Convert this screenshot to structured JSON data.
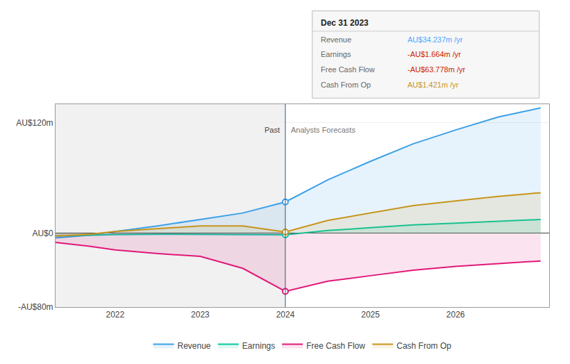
{
  "chart_data": {
    "type": "line",
    "x": [
      2021.3,
      2021.7,
      2022.0,
      2022.5,
      2023.0,
      2023.5,
      2024.0,
      2024.5,
      2025.0,
      2025.5,
      2026.0,
      2026.5,
      2027.0
    ],
    "series": [
      {
        "name": "Revenue",
        "color": "#3ba0e8",
        "values": [
          -5,
          -2,
          2,
          8,
          15,
          22,
          34,
          58,
          78,
          97,
          112,
          126,
          136
        ]
      },
      {
        "name": "Earnings",
        "color": "#00c8a0",
        "values": [
          -3,
          -2,
          -1.5,
          -1,
          -1,
          -1.5,
          -1.6,
          3,
          6,
          9,
          11,
          13,
          15
        ]
      },
      {
        "name": "Free Cash Flow",
        "color": "#e01878",
        "values": [
          -10,
          -14,
          -18,
          -22,
          -25,
          -38,
          -63,
          -52,
          -46,
          -40,
          -36,
          -33,
          -30
        ]
      },
      {
        "name": "Cash From Op",
        "color": "#c8941a",
        "values": [
          -3,
          -1,
          2,
          5,
          8,
          8,
          1.4,
          14,
          22,
          30,
          35,
          40,
          44
        ]
      }
    ],
    "xlim": [
      2021.3,
      2027.1
    ],
    "xticks": [
      2022,
      2023,
      2024,
      2025,
      2026
    ],
    "ylim": [
      -80,
      140
    ],
    "yticks": [
      {
        "value": -80,
        "label": "-AU$80m"
      },
      {
        "value": 0,
        "label": "AU$0"
      },
      {
        "value": 120,
        "label": "AU$120m"
      }
    ],
    "grid": "y",
    "divider": {
      "x": 2024.0,
      "left_label": "Past",
      "right_label": "Analysts Forecasts",
      "label_y": 112
    },
    "tooltip": {
      "title": "Dec 31 2023",
      "rows": [
        {
          "label": "Revenue",
          "value": "AU$34.237m /yr",
          "color": "#4da6ff"
        },
        {
          "label": "Earnings",
          "value": "-AU$1.664m /yr",
          "color": "#cc2200"
        },
        {
          "label": "Free Cash Flow",
          "value": "-AU$63.778m /yr",
          "color": "#cc2200"
        },
        {
          "label": "Cash From Op",
          "value": "AU$1.421m /yr",
          "color": "#c8941a"
        }
      ]
    }
  }
}
